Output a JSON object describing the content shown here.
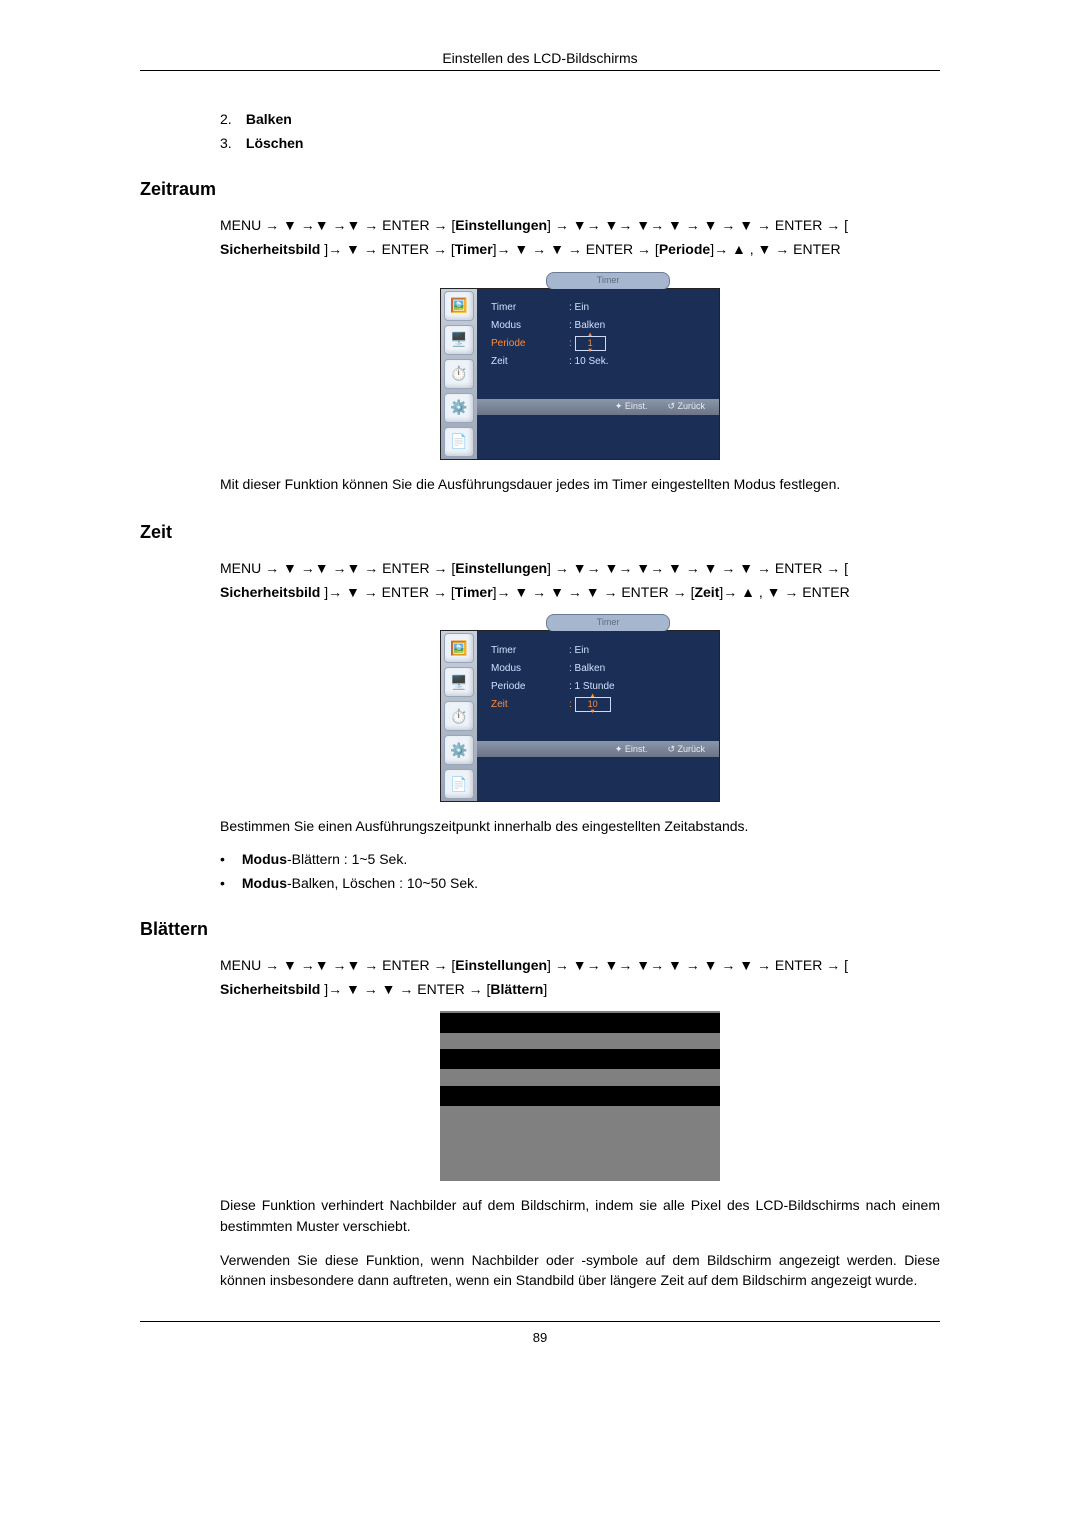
{
  "header": {
    "title": "Einstellen des LCD-Bildschirms"
  },
  "footer": {
    "page": "89"
  },
  "numbered": {
    "items": [
      {
        "n": "2.",
        "label": "Balken"
      },
      {
        "n": "3.",
        "label": "Löschen"
      }
    ]
  },
  "sec_zeitraum": {
    "title": "Zeitraum",
    "path_html": "MENU → ▼ →▼ →▼ → ENTER → [<b>Einstellungen</b>] → ▼→ ▼→ ▼→ ▼ → ▼ → ▼ → ENTER → [ <b>Sicherheitsbild</b> ]→ ▼ → ENTER → [<b>Timer</b>]→ ▼ → ▼ → ENTER → [<b>Periode</b>]→ ▲ , ▼ → ENTER",
    "desc": "Mit dieser Funktion können Sie die Ausführungsdauer jedes im Timer eingestellten Modus festlegen.",
    "osd": {
      "tab": "Timer",
      "icons": [
        "🖼️",
        "🖥️",
        "⏱️",
        "⚙️",
        "📄"
      ],
      "rows": [
        {
          "k": "Timer",
          "v": ": Ein",
          "hl": false,
          "box": false
        },
        {
          "k": "Modus",
          "v": ": Balken",
          "hl": false,
          "box": false
        },
        {
          "k": "Periode",
          "v": "1",
          "hl": true,
          "box": true
        },
        {
          "k": "Zeit",
          "v": ": 10 Sek.",
          "hl": false,
          "box": false
        }
      ],
      "foot": {
        "a": "✦ Einst.",
        "b": "↺ Zurück"
      }
    }
  },
  "sec_zeit": {
    "title": "Zeit",
    "path_html": "MENU → ▼ →▼ →▼ → ENTER → [<b>Einstellungen</b>] → ▼→ ▼→ ▼→ ▼ → ▼ → ▼ → ENTER → [ <b>Sicherheitsbild</b> ]→ ▼ → ENTER → [<b>Timer</b>]→ ▼ → ▼ → ▼ → ENTER → [<b>Zeit</b>]→ ▲ , ▼ → ENTER",
    "desc": "Bestimmen Sie einen Ausführungszeitpunkt innerhalb des eingestellten Zeitabstands.",
    "bullets": [
      {
        "b": "Modus",
        "rest": "-Blättern : 1~5 Sek."
      },
      {
        "b": "Modus",
        "rest": "-Balken, Löschen : 10~50 Sek."
      }
    ],
    "osd": {
      "tab": "Timer",
      "icons": [
        "🖼️",
        "🖥️",
        "⏱️",
        "⚙️",
        "📄"
      ],
      "rows": [
        {
          "k": "Timer",
          "v": ": Ein",
          "hl": false,
          "box": false
        },
        {
          "k": "Modus",
          "v": ": Balken",
          "hl": false,
          "box": false
        },
        {
          "k": "Periode",
          "v": ": 1 Stunde",
          "hl": false,
          "box": false
        },
        {
          "k": "Zeit",
          "v": "10",
          "hl": true,
          "box": true
        }
      ],
      "foot": {
        "a": "✦ Einst.",
        "b": "↺ Zurück"
      }
    }
  },
  "sec_blaettern": {
    "title": "Blättern",
    "path_html": "MENU → ▼ →▼ →▼ → ENTER → [<b>Einstellungen</b>] → ▼→ ▼→ ▼→ ▼ → ▼ → ▼ → ENTER → [ <b>Sicherheitsbild</b> ]→ ▼ → ▼ → ENTER → [<b>Blättern</b>]",
    "desc1": "Diese Funktion verhindert Nachbilder auf dem Bildschirm, indem sie alle Pixel des LCD-Bildschirms nach einem bestimmten Muster verschiebt.",
    "desc2": "Verwenden Sie diese Funktion, wenn Nachbilder oder -symbole auf dem Bildschirm angezeigt werden. Diese können insbesondere dann auftreten, wenn ein Standbild über längere Zeit auf dem Bildschirm angezeigt wurde.",
    "greybox": {
      "bar_tops": [
        2,
        38,
        75
      ]
    }
  }
}
